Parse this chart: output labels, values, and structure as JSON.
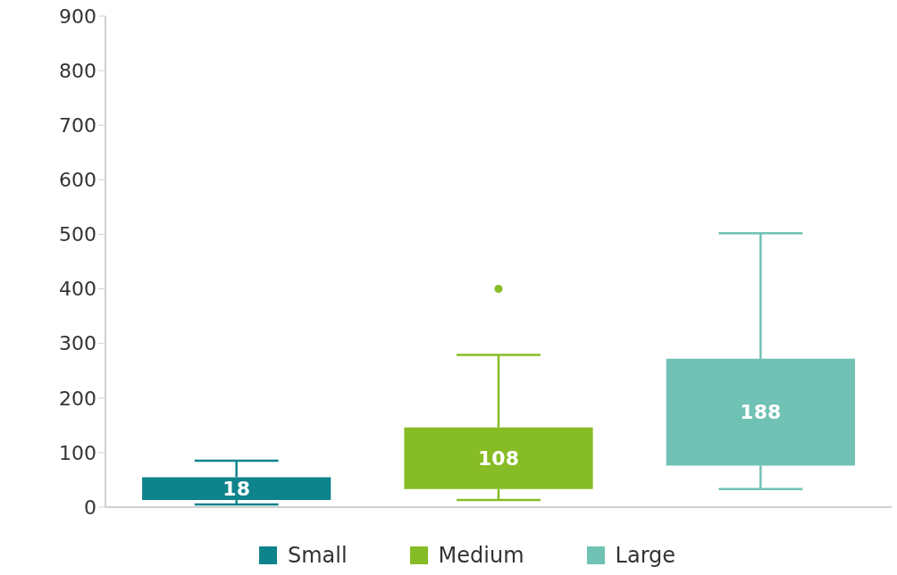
{
  "chart_data": {
    "type": "box",
    "categories": [
      null,
      null,
      null
    ],
    "series": [
      {
        "name": "Small",
        "color": "#0e838c",
        "boxes": [
          {
            "low": 5,
            "q1": 13,
            "q3": 55,
            "high": 85
          },
          null,
          null
        ]
      },
      {
        "name": "Medium",
        "color": "#86bc25",
        "boxes": [
          null,
          {
            "low": 13,
            "q1": 33,
            "q3": 146,
            "high": 279,
            "outliers": [
              400
            ]
          },
          null
        ]
      },
      {
        "name": "Large",
        "color": "#6fc2b4",
        "boxes": [
          null,
          null,
          {
            "low": 33,
            "q1": 76,
            "q3": 272,
            "high": 502
          }
        ]
      }
    ],
    "annotations": [
      "18",
      "108",
      "188"
    ],
    "ylim": [
      0,
      900
    ],
    "yticks": [
      0,
      100,
      200,
      300,
      400,
      500,
      600,
      700,
      800,
      900
    ],
    "legend": "bottom",
    "tick_labels": "y"
  }
}
